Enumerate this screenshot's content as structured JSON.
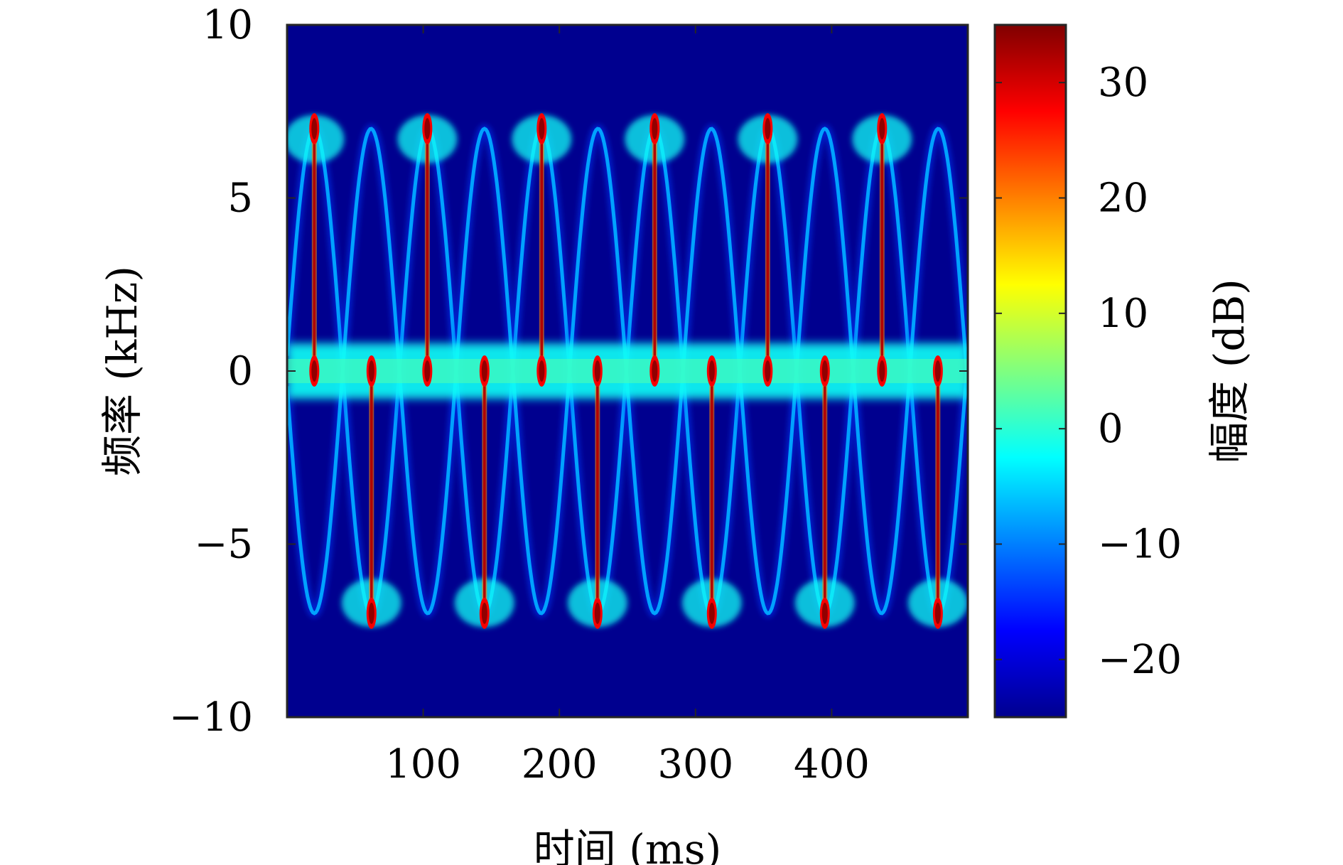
{
  "chart_data": {
    "type": "heatmap",
    "title": "",
    "xlabel": "时间 (ms)",
    "ylabel": "频率 (kHz)",
    "colorbar_label": "幅度 (dB)",
    "colormap": "jet",
    "background_color": "#00008f",
    "grid": false,
    "xlim": [
      0,
      500
    ],
    "ylim": [
      -10,
      10
    ],
    "clim": [
      -25,
      35
    ],
    "x_ticks": [
      100,
      200,
      300,
      400
    ],
    "x_tick_labels": [
      "100",
      "200",
      "300",
      "400"
    ],
    "y_ticks": [
      10,
      5,
      0,
      -5,
      -10
    ],
    "y_tick_labels": [
      "10",
      "5",
      "0",
      "−5",
      "−10"
    ],
    "colorbar_ticks": [
      30,
      20,
      10,
      0,
      -10,
      -20
    ],
    "colorbar_tick_labels": [
      "30",
      "20",
      "10",
      "0",
      "−10",
      "−20"
    ],
    "signal": {
      "description_values": "sinusoidal FM echo with mirrored component; spectrogram magnitude",
      "period_ms": 83.33,
      "peak_frequency_khz": 7,
      "dc_band_khz": [
        -0.8,
        0.8
      ],
      "upper_peak_times_ms": [
        20,
        103,
        187,
        270,
        353,
        437
      ],
      "lower_trough_times_ms": [
        62,
        145,
        228,
        312,
        395,
        478
      ],
      "flash_peak_db": 34,
      "curve_db": -8,
      "band_db": -2
    }
  }
}
